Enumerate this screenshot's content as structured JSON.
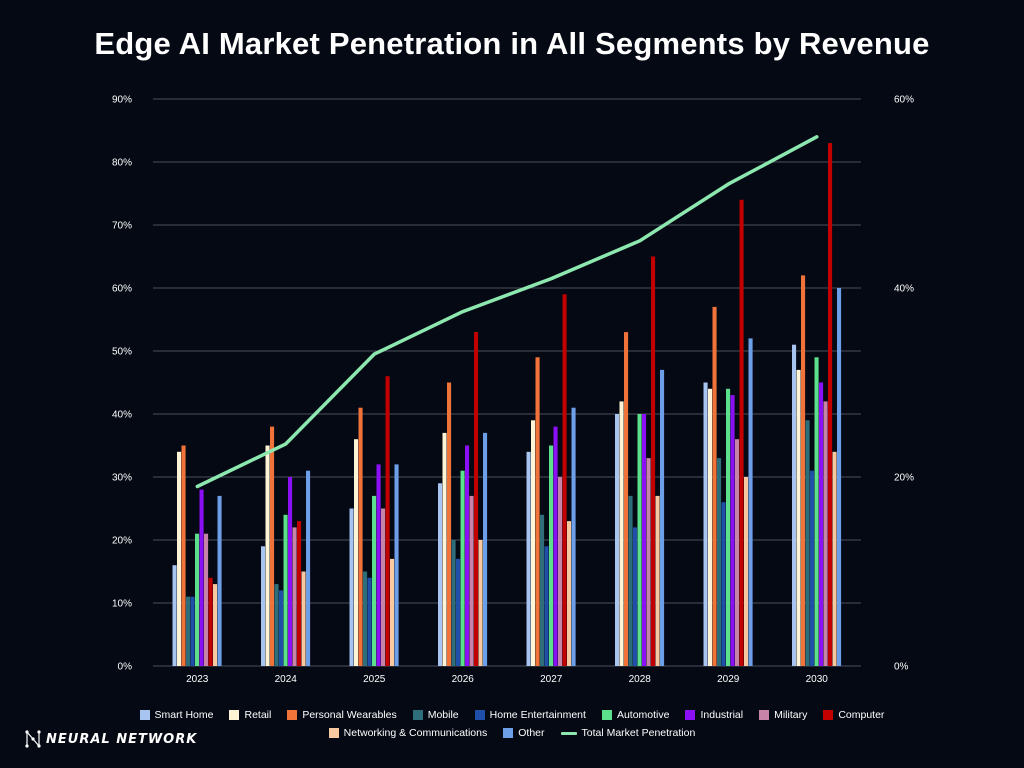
{
  "title": "Edge AI Market Penetration in All Segments by Revenue",
  "logo_text": "NEURAL NETWORK",
  "chart_data": {
    "type": "bar",
    "categories": [
      "2023",
      "2024",
      "2025",
      "2026",
      "2027",
      "2028",
      "2029",
      "2030"
    ],
    "y_left_ticks": [
      "0%",
      "10%",
      "20%",
      "30%",
      "40%",
      "50%",
      "60%",
      "70%",
      "80%",
      "90%"
    ],
    "y_right_ticks": [
      "0%",
      "20%",
      "40%",
      "60%"
    ],
    "ylim_left": [
      0,
      90
    ],
    "ylim_right": [
      0,
      60
    ],
    "grid": true,
    "legend_position": "bottom",
    "series": [
      {
        "name": "Smart Home",
        "color": "#a8c4f0",
        "values": [
          16,
          19,
          25,
          29,
          34,
          40,
          45,
          51
        ]
      },
      {
        "name": "Retail",
        "color": "#fff5d6",
        "values": [
          34,
          35,
          36,
          37,
          39,
          42,
          44,
          47
        ]
      },
      {
        "name": "Personal Wearables",
        "color": "#f0743a",
        "values": [
          35,
          38,
          41,
          45,
          49,
          53,
          57,
          62
        ]
      },
      {
        "name": "Mobile",
        "color": "#2e6e7a",
        "values": [
          11,
          13,
          15,
          20,
          24,
          27,
          33,
          39
        ]
      },
      {
        "name": "Home Entertainment",
        "color": "#1f4fa8",
        "values": [
          11,
          12,
          14,
          17,
          19,
          22,
          26,
          31
        ]
      },
      {
        "name": "Automotive",
        "color": "#5ce08c",
        "values": [
          21,
          24,
          27,
          31,
          35,
          40,
          44,
          49
        ]
      },
      {
        "name": "Industrial",
        "color": "#8b10f5",
        "values": [
          28,
          30,
          32,
          35,
          38,
          40,
          43,
          45
        ]
      },
      {
        "name": "Military",
        "color": "#c783a8",
        "values": [
          21,
          22,
          25,
          27,
          30,
          33,
          36,
          42
        ]
      },
      {
        "name": "Computer",
        "color": "#c20000",
        "values": [
          14,
          23,
          46,
          53,
          59,
          65,
          74,
          83
        ]
      },
      {
        "name": "Networking & Communications",
        "color": "#f8c9a0",
        "values": [
          13,
          15,
          17,
          20,
          23,
          27,
          30,
          34
        ]
      },
      {
        "name": "Other",
        "color": "#6d9ee8",
        "values": [
          27,
          31,
          32,
          37,
          41,
          47,
          52,
          60
        ]
      }
    ],
    "line_series": {
      "name": "Total Market Penetration",
      "color": "#8de8b0",
      "axis": "right",
      "values": [
        19,
        23.5,
        33,
        37.5,
        41,
        45,
        51,
        56
      ]
    }
  }
}
